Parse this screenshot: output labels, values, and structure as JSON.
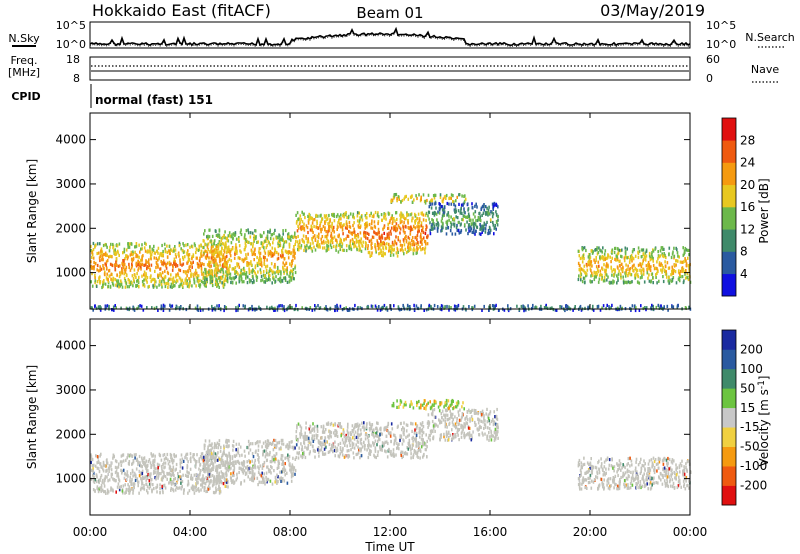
{
  "header": {
    "station": "Hokkaido East (fitACF)",
    "beam": "Beam 01",
    "date": "03/May/2019"
  },
  "top_panels": {
    "nsky_label": "N.Sky",
    "nsearch_label": "N.Search",
    "noise_ticks": [
      "10^5",
      "10^0"
    ],
    "freq_label_1": "Freq.",
    "freq_label_2": "[MHz]",
    "freq_ticks": [
      "18",
      "8"
    ],
    "nave_label": "Nave",
    "nave_ticks": [
      "60",
      "0"
    ],
    "cpid_label": "CPID",
    "cpid_value": "normal (fast) 151"
  },
  "x_axis": {
    "label": "Time UT",
    "ticks": [
      "00:00",
      "04:00",
      "08:00",
      "12:00",
      "16:00",
      "20:00",
      "00:00"
    ]
  },
  "colors": {
    "power_scale": [
      "#1010e0",
      "#2a5aa0",
      "#3f8a6a",
      "#6cb84a",
      "#e8c820",
      "#f59a10",
      "#ef5a10",
      "#e01010"
    ],
    "velocity_scale": [
      "#e01010",
      "#ef5a10",
      "#f59a10",
      "#f0d040",
      "#c8c8c8",
      "#6cc440",
      "#3f8a6a",
      "#2a5aa0",
      "#1a2aa0"
    ],
    "ground_scatter": "#c4c4bc"
  },
  "chart_data": [
    {
      "type": "heatmap",
      "title": "Power",
      "xlabel": "Time UT",
      "ylabel": "Slant Range [km]",
      "xlim": [
        0,
        24
      ],
      "ylim": [
        180,
        4600
      ],
      "yticks": [
        1000,
        2000,
        3000,
        4000
      ],
      "colorbar": {
        "label": "Power [dB]",
        "ticks": [
          4,
          8,
          12,
          16,
          20,
          24,
          28
        ],
        "range": [
          0,
          32
        ]
      },
      "echo_regions": [
        {
          "t_start": 0.0,
          "t_end": 5.5,
          "range_low": 700,
          "range_high": 1700,
          "power_db": 24
        },
        {
          "t_start": 4.5,
          "t_end": 8.2,
          "range_low": 800,
          "range_high": 2000,
          "power_db": 22
        },
        {
          "t_start": 8.2,
          "t_end": 11.0,
          "range_low": 1500,
          "range_high": 2400,
          "power_db": 24
        },
        {
          "t_start": 11.0,
          "t_end": 13.5,
          "range_low": 1400,
          "range_high": 2400,
          "power_db": 26
        },
        {
          "t_start": 12.0,
          "t_end": 15.0,
          "range_low": 2600,
          "range_high": 2800,
          "power_db": 22
        },
        {
          "t_start": 13.5,
          "t_end": 16.3,
          "range_low": 1900,
          "range_high": 2600,
          "power_db": 14
        },
        {
          "t_start": 19.5,
          "t_end": 24.0,
          "range_low": 800,
          "range_high": 1600,
          "power_db": 22
        },
        {
          "t_start": 0.0,
          "t_end": 24.0,
          "range_low": 180,
          "range_high": 300,
          "power_db": 12
        }
      ]
    },
    {
      "type": "heatmap",
      "title": "Velocity",
      "xlabel": "Time UT",
      "ylabel": "Slant Range [km]",
      "xlim": [
        0,
        24
      ],
      "ylim": [
        180,
        4600
      ],
      "yticks": [
        1000,
        2000,
        3000,
        4000
      ],
      "colorbar": {
        "label": "Velocity [m s^-1]",
        "ticks": [
          200,
          100,
          50,
          15,
          -15,
          -50,
          -100,
          -200
        ]
      },
      "echo_regions": [
        {
          "t_start": 0.0,
          "t_end": 5.5,
          "range_low": 700,
          "range_high": 1600,
          "velocity": 0
        },
        {
          "t_start": 4.5,
          "t_end": 8.2,
          "range_low": 900,
          "range_high": 1900,
          "velocity": 0
        },
        {
          "t_start": 8.2,
          "t_end": 13.5,
          "range_low": 1500,
          "range_high": 2300,
          "velocity": 0
        },
        {
          "t_start": 12.0,
          "t_end": 15.0,
          "range_low": 2600,
          "range_high": 2800,
          "velocity": 40
        },
        {
          "t_start": 13.5,
          "t_end": 16.3,
          "range_low": 1900,
          "range_high": 2600,
          "velocity": 0
        },
        {
          "t_start": 19.5,
          "t_end": 24.0,
          "range_low": 800,
          "range_high": 1500,
          "velocity": 0
        }
      ]
    }
  ]
}
